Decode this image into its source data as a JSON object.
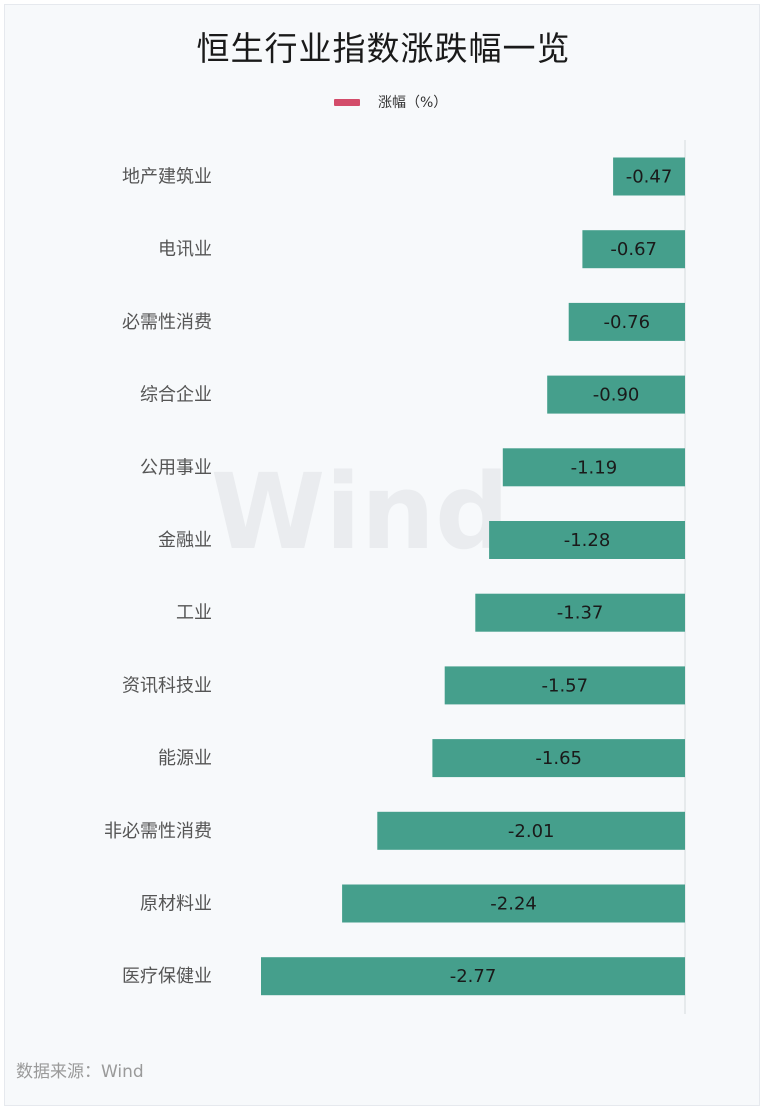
{
  "chart_data": {
    "type": "bar",
    "orientation": "horizontal",
    "title": "恒生行业指数涨跌幅一览",
    "legend": {
      "label": "涨幅（%）",
      "color": "#d34c6a",
      "position": "top"
    },
    "bar_color": "#459f8c",
    "categories": [
      "地产建筑业",
      "电讯业",
      "必需性消费",
      "综合企业",
      "公用事业",
      "金融业",
      "工业",
      "资讯科技业",
      "能源业",
      "非必需性消费",
      "原材料业",
      "医疗保健业"
    ],
    "values": [
      -0.47,
      -0.67,
      -0.76,
      -0.9,
      -1.19,
      -1.28,
      -1.37,
      -1.57,
      -1.65,
      -2.01,
      -2.24,
      -2.77
    ],
    "value_labels": [
      "-0.47",
      "-0.67",
      "-0.76",
      "-0.90",
      "-1.19",
      "-1.28",
      "-1.37",
      "-1.57",
      "-1.65",
      "-2.01",
      "-2.24",
      "-2.77"
    ],
    "xlim": [
      -2.77,
      0
    ],
    "grid": false
  },
  "watermark": "Wind",
  "source": "数据来源：Wind"
}
